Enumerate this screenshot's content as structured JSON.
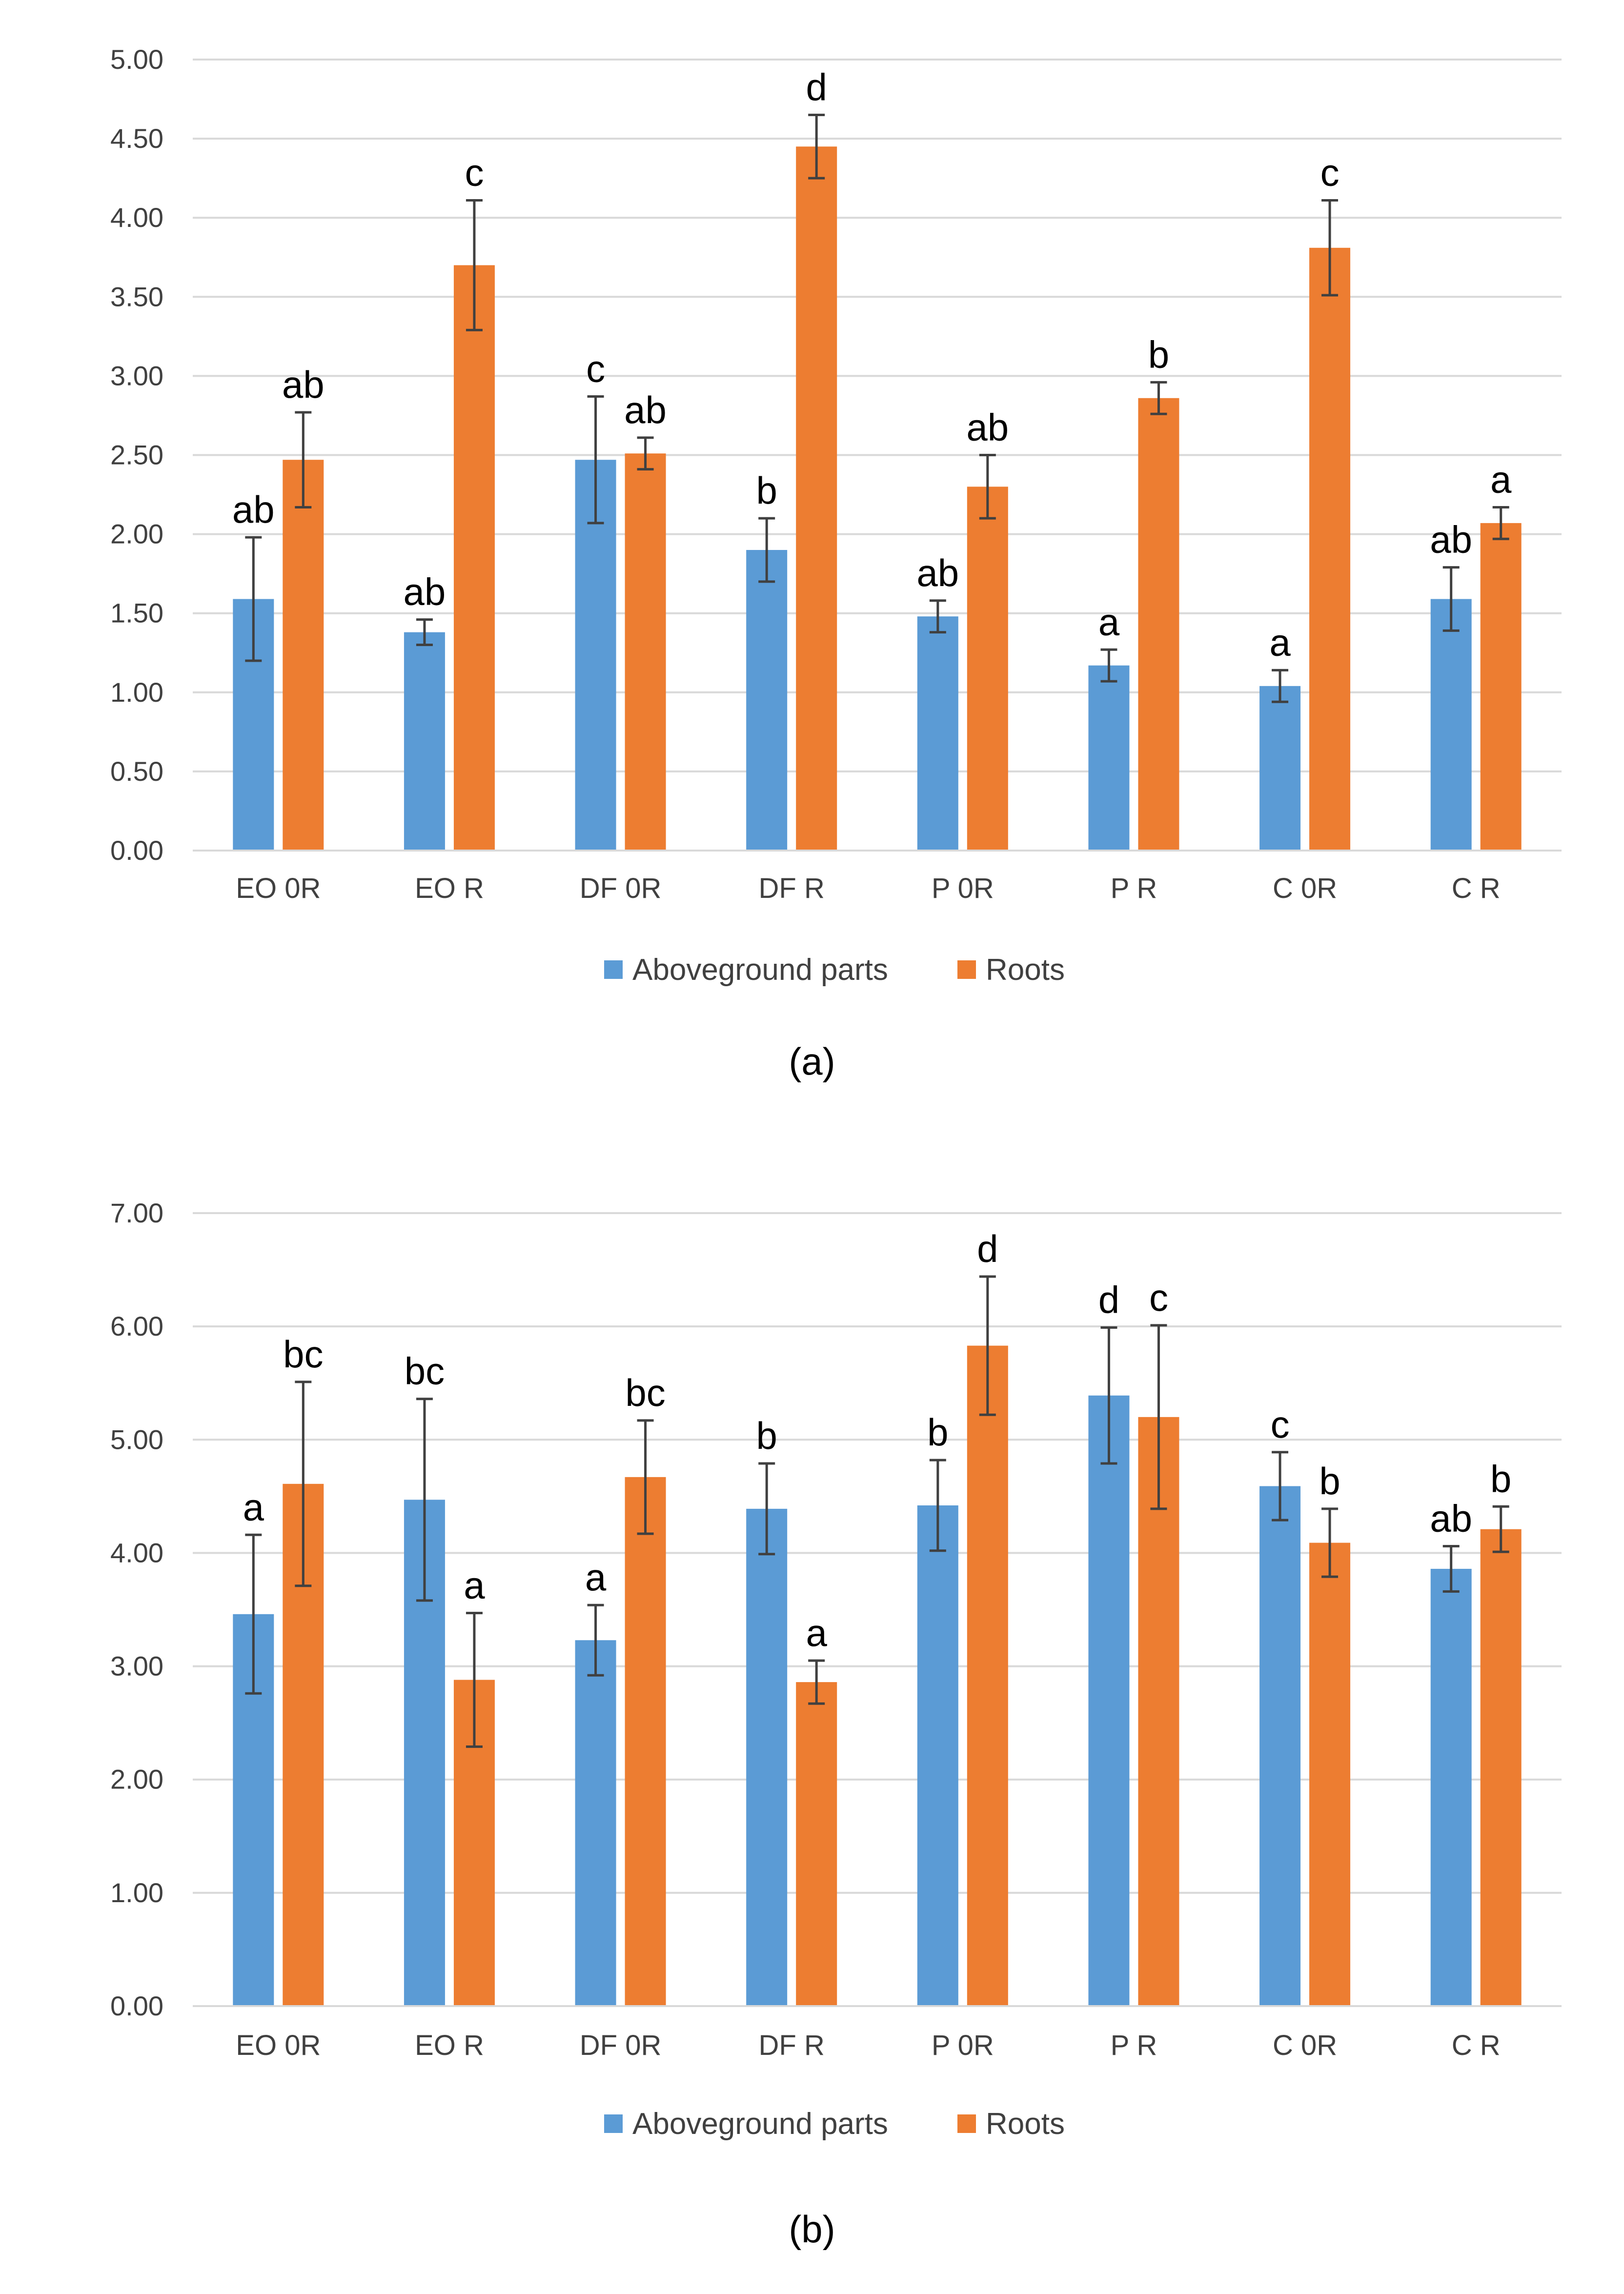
{
  "chart_data": [
    {
      "id": "a",
      "type": "bar",
      "caption": "(a)",
      "categories": [
        "EO 0R",
        "EO R",
        "DF 0R",
        "DF R",
        "P 0R",
        "P R",
        "C 0R",
        "C R"
      ],
      "ylim": [
        0,
        5
      ],
      "yticks": [
        "0.00",
        "0.50",
        "1.00",
        "1.50",
        "2.00",
        "2.50",
        "3.00",
        "3.50",
        "4.00",
        "4.50",
        "5.00"
      ],
      "grid": true,
      "legend": "bottom",
      "series": [
        {
          "name": "Aboveground parts",
          "color": "#5B9BD5",
          "values": [
            1.59,
            1.38,
            2.47,
            1.9,
            1.48,
            1.17,
            1.04,
            1.59
          ],
          "errors": [
            0.39,
            0.08,
            0.4,
            0.2,
            0.1,
            0.1,
            0.1,
            0.2
          ],
          "letters": [
            "ab",
            "ab",
            "c",
            "b",
            "ab",
            "a",
            "a",
            "ab"
          ]
        },
        {
          "name": "Roots",
          "color": "#ED7D31",
          "values": [
            2.47,
            3.7,
            2.51,
            4.45,
            2.3,
            2.86,
            3.81,
            2.07
          ],
          "errors": [
            0.3,
            0.41,
            0.1,
            0.2,
            0.2,
            0.1,
            0.3,
            0.1
          ],
          "letters": [
            "ab",
            "c",
            "ab",
            "d",
            "ab",
            "b",
            "c",
            "a"
          ]
        }
      ]
    },
    {
      "id": "b",
      "type": "bar",
      "caption": "(b)",
      "categories": [
        "EO 0R",
        "EO R",
        "DF 0R",
        "DF R",
        "P 0R",
        "P R",
        "C 0R",
        "C R"
      ],
      "ylim": [
        0,
        7
      ],
      "yticks": [
        "0.00",
        "1.00",
        "2.00",
        "3.00",
        "4.00",
        "5.00",
        "6.00",
        "7.00"
      ],
      "grid": true,
      "legend": "bottom",
      "series": [
        {
          "name": "Aboveground parts",
          "color": "#5B9BD5",
          "values": [
            3.46,
            4.47,
            3.23,
            4.39,
            4.42,
            5.39,
            4.59,
            3.86
          ],
          "errors": [
            0.7,
            0.89,
            0.31,
            0.4,
            0.4,
            0.6,
            0.3,
            0.2
          ],
          "letters": [
            "a",
            "bc",
            "a",
            "b",
            "b",
            "d",
            "c",
            "ab"
          ]
        },
        {
          "name": "Roots",
          "color": "#ED7D31",
          "values": [
            4.61,
            2.88,
            4.67,
            2.86,
            5.83,
            5.2,
            4.09,
            4.21
          ],
          "errors": [
            0.9,
            0.59,
            0.5,
            0.19,
            0.61,
            0.81,
            0.3,
            0.2
          ],
          "letters": [
            "bc",
            "a",
            "bc",
            "a",
            "d",
            "c",
            "b",
            "b"
          ]
        }
      ]
    }
  ]
}
